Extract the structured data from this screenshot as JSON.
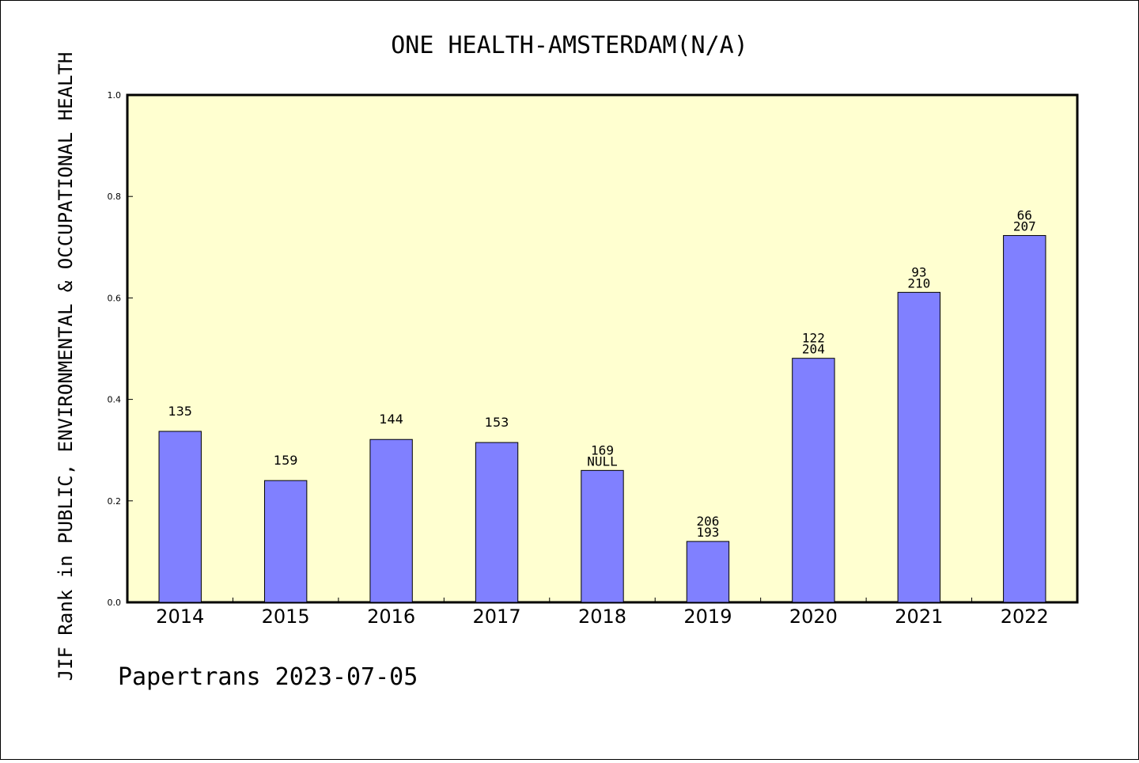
{
  "chart_data": {
    "type": "bar",
    "title": "ONE HEALTH-AMSTERDAM(N/A)",
    "ylabel": "JIF Rank in PUBLIC, ENVIRONMENTAL & OCCUPATIONAL HEALTH",
    "xlabel": "",
    "ylim": [
      0.0,
      1.0
    ],
    "yticks": [
      "0.0",
      "0.2",
      "0.4",
      "0.6",
      "0.8",
      "1.0"
    ],
    "categories": [
      "2014",
      "2015",
      "2016",
      "2017",
      "2018",
      "2019",
      "2020",
      "2021",
      "2022"
    ],
    "values": [
      0.337,
      0.24,
      0.321,
      0.315,
      0.26,
      0.12,
      0.481,
      0.611,
      0.723
    ],
    "labels_top": [
      "135",
      "159",
      "144",
      "153",
      "169",
      "206",
      "122",
      "93",
      "66"
    ],
    "labels_bottom": [
      "",
      "",
      "",
      "",
      "NULL",
      "193",
      "204",
      "210",
      "207"
    ],
    "grid": false,
    "bar_color": "#8080ff",
    "plot_background": "#ffffd0"
  },
  "footer": "Papertrans 2023-07-05"
}
